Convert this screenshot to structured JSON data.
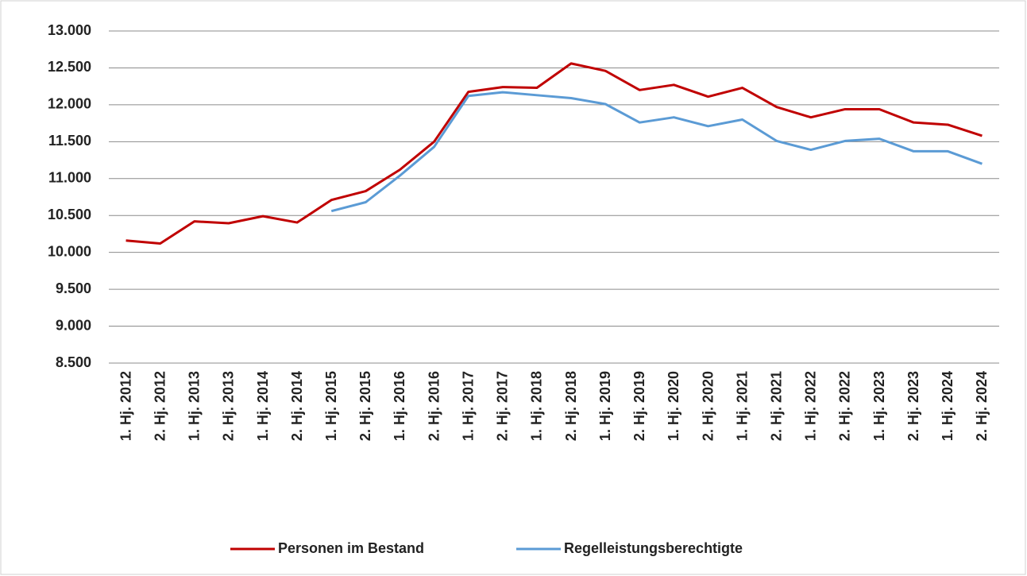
{
  "chart_data": {
    "type": "line",
    "categories": [
      "1. Hj. 2012",
      "2. Hj. 2012",
      "1. Hj. 2013",
      "2. Hj. 2013",
      "1. Hj. 2014",
      "2. Hj. 2014",
      "1. Hj. 2015",
      "2. Hj. 2015",
      "1. Hj. 2016",
      "2. Hj. 2016",
      "1. Hj. 2017",
      "2. Hj. 2017",
      "1. Hj. 2018",
      "2. Hj. 2018",
      "1. Hj. 2019",
      "2. Hj. 2019",
      "1. Hj. 2020",
      "2. Hj. 2020",
      "1. Hj. 2021",
      "2. Hj. 2021",
      "1. Hj. 2022",
      "2. Hj. 2022",
      "1. Hj. 2023",
      "2. Hj. 2023",
      "1. Hj. 2024",
      "2. Hj. 2024"
    ],
    "series": [
      {
        "name": "Personen im Bestand",
        "color": "#c00000",
        "values": [
          10160,
          10120,
          10420,
          10395,
          10490,
          10405,
          10710,
          10830,
          11120,
          11500,
          12175,
          12240,
          12230,
          12560,
          12460,
          12200,
          12270,
          12110,
          12230,
          11970,
          11830,
          11940,
          11940,
          11760,
          11730,
          11580
        ]
      },
      {
        "name": "Regelleistungsberechtigte",
        "color": "#5b9bd5",
        "values": [
          null,
          null,
          null,
          null,
          null,
          null,
          10560,
          10680,
          11040,
          11430,
          12120,
          12170,
          12130,
          12090,
          12010,
          11760,
          11830,
          11710,
          11800,
          11510,
          11390,
          11510,
          11540,
          11370,
          11370,
          11200
        ]
      }
    ],
    "ylim": [
      8500,
      13000
    ],
    "yticks": [
      {
        "value": 8500,
        "label": "8.500"
      },
      {
        "value": 9000,
        "label": "9.000"
      },
      {
        "value": 9500,
        "label": "9.500"
      },
      {
        "value": 10000,
        "label": "10.000"
      },
      {
        "value": 10500,
        "label": "10.500"
      },
      {
        "value": 11000,
        "label": "11.000"
      },
      {
        "value": 11500,
        "label": "11.500"
      },
      {
        "value": 12000,
        "label": "12.000"
      },
      {
        "value": 12500,
        "label": "12.500"
      },
      {
        "value": 13000,
        "label": "13.000"
      }
    ],
    "grid": true,
    "legend": "bottom"
  }
}
